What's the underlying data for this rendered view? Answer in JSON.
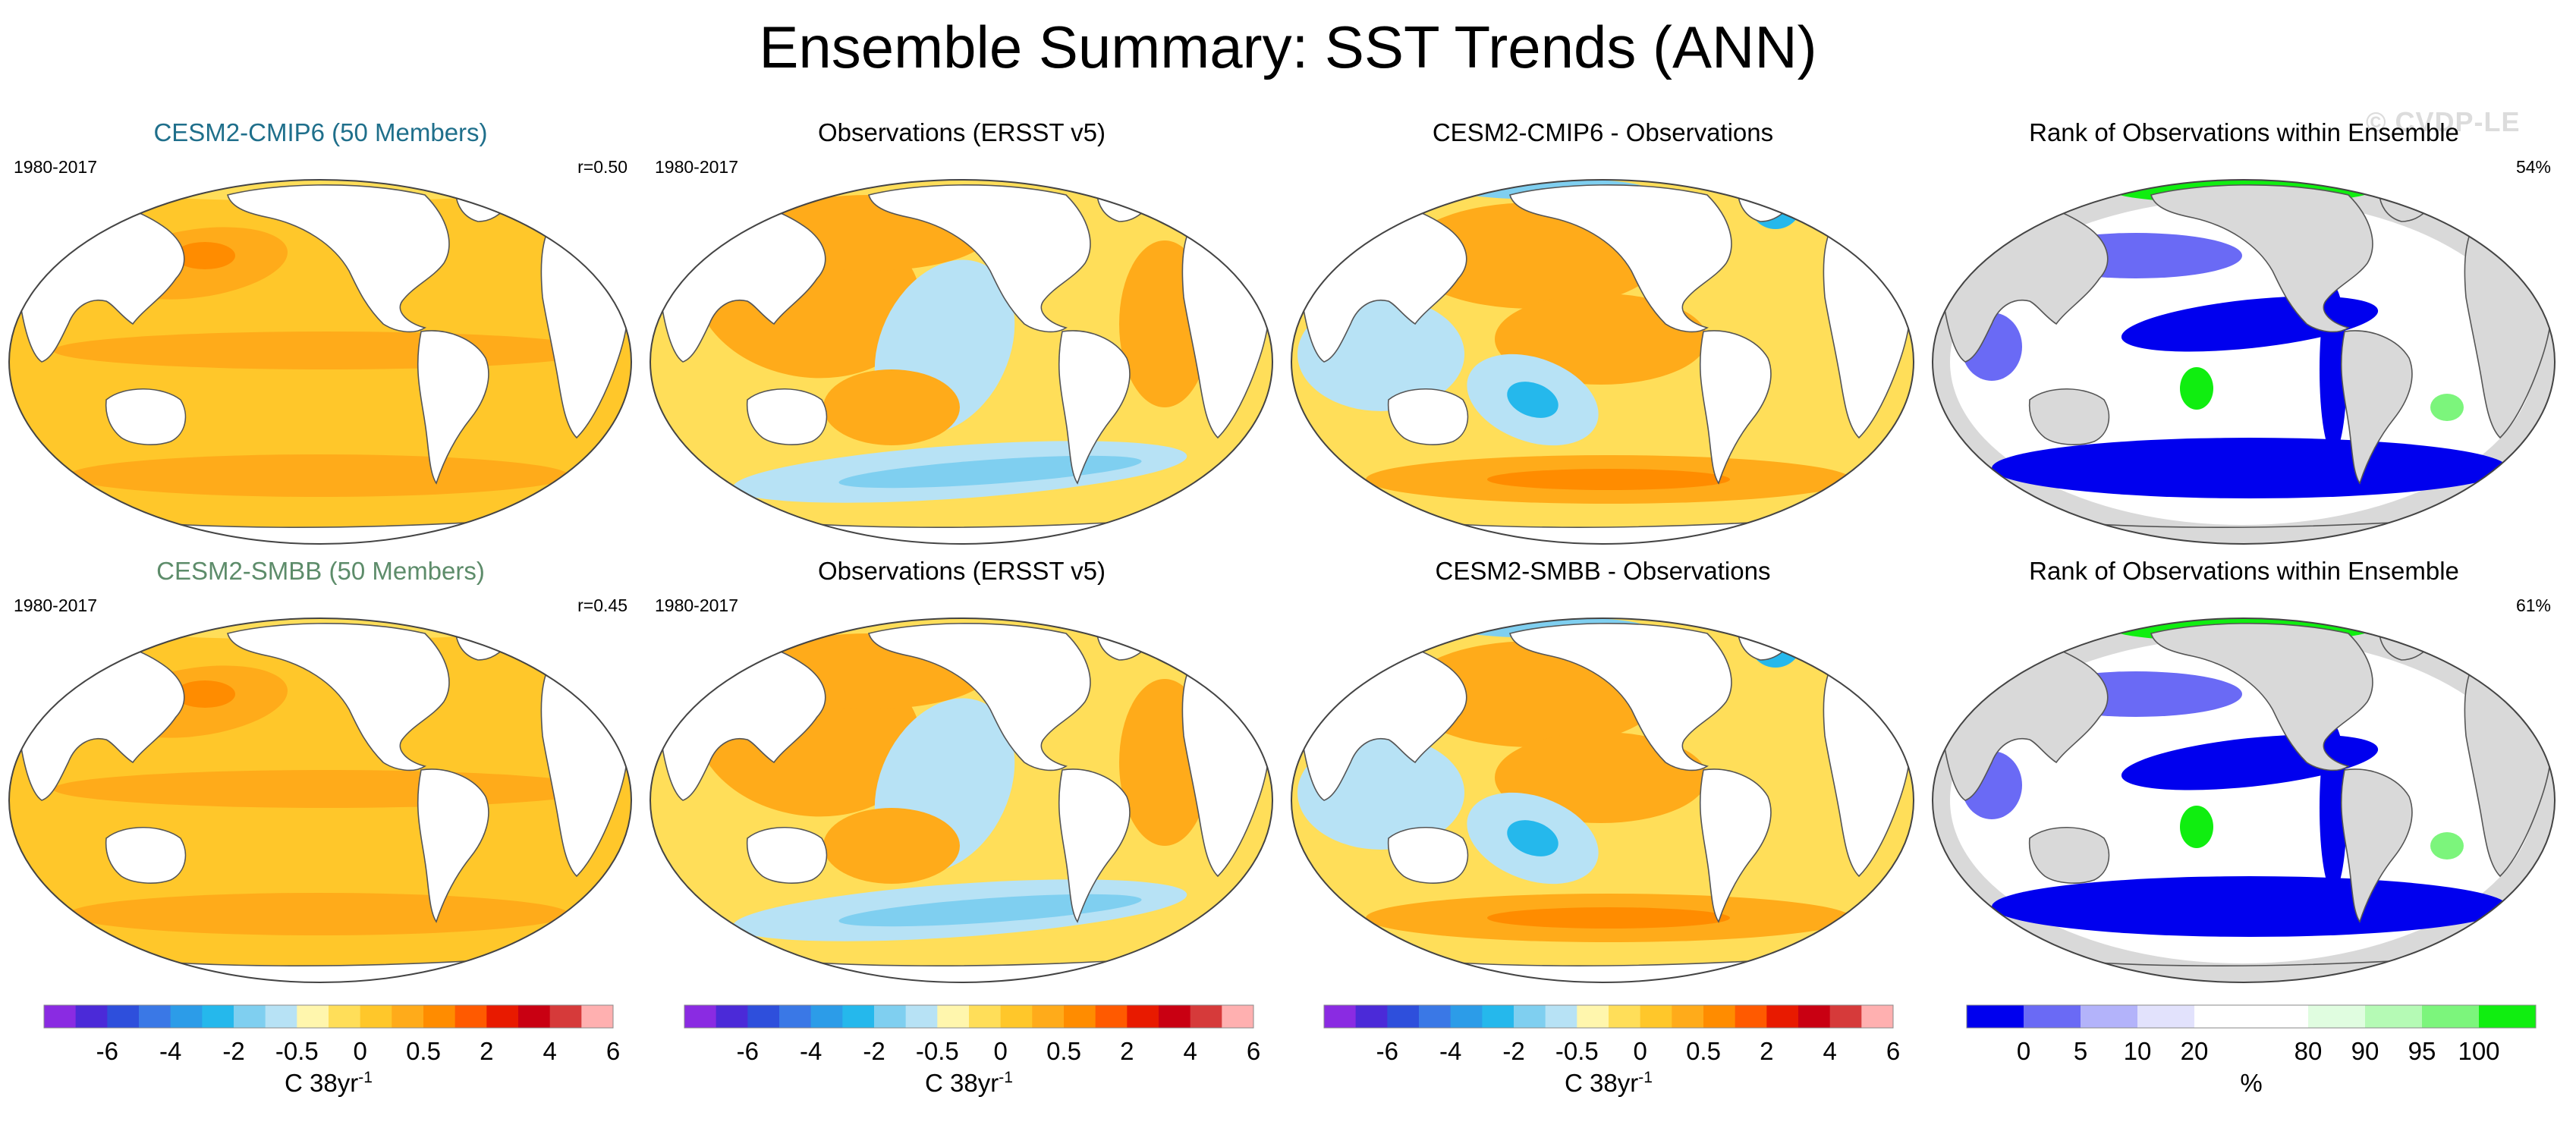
{
  "title": "Ensemble Summary: SST Trends (ANN)",
  "watermark": "© CVDP-LE",
  "panels": [
    {
      "title": "CESM2-CMIP6 (50 Members)",
      "title_color": "#1f6f8b",
      "left": "1980-2017",
      "right": "r=0.50",
      "kind": "model"
    },
    {
      "title": "Observations (ERSST v5)",
      "title_color": "#000000",
      "left": "1980-2017",
      "right": "",
      "kind": "obs"
    },
    {
      "title": "CESM2-CMIP6 - Observations",
      "title_color": "#000000",
      "left": "",
      "right": "",
      "kind": "diff"
    },
    {
      "title": "Rank of Observations within Ensemble",
      "title_color": "#000000",
      "left": "",
      "right": "54%",
      "kind": "rank"
    },
    {
      "title": "CESM2-SMBB (50 Members)",
      "title_color": "#5d8c6a",
      "left": "1980-2017",
      "right": "r=0.45",
      "kind": "model"
    },
    {
      "title": "Observations (ERSST v5)",
      "title_color": "#000000",
      "left": "1980-2017",
      "right": "",
      "kind": "obs"
    },
    {
      "title": "CESM2-SMBB - Observations",
      "title_color": "#000000",
      "left": "",
      "right": "",
      "kind": "diff"
    },
    {
      "title": "Rank of Observations within Ensemble",
      "title_color": "#000000",
      "left": "",
      "right": "61%",
      "kind": "rank"
    }
  ],
  "colorbars": [
    {
      "colors": [
        "#8a2be2",
        "#4b2ad8",
        "#2e4fdc",
        "#3a78e6",
        "#2c9ce8",
        "#25b8ec",
        "#7fcff0",
        "#b7e2f5",
        "#fff6ad",
        "#ffde59",
        "#ffc72a",
        "#ffab1a",
        "#ff8c00",
        "#ff5a00",
        "#e81a00",
        "#c90012",
        "#d63a3a",
        "#ffb0b0"
      ],
      "ticks": [
        "-6",
        "-4",
        "-2",
        "-0.5",
        "0",
        "0.5",
        "2",
        "4",
        "6"
      ],
      "unit": "C 38yr",
      "unit_sup": "-1"
    },
    {
      "colors": [
        "#8a2be2",
        "#4b2ad8",
        "#2e4fdc",
        "#3a78e6",
        "#2c9ce8",
        "#25b8ec",
        "#7fcff0",
        "#b7e2f5",
        "#fff6ad",
        "#ffde59",
        "#ffc72a",
        "#ffab1a",
        "#ff8c00",
        "#ff5a00",
        "#e81a00",
        "#c90012",
        "#d63a3a",
        "#ffb0b0"
      ],
      "ticks": [
        "-6",
        "-4",
        "-2",
        "-0.5",
        "0",
        "0.5",
        "2",
        "4",
        "6"
      ],
      "unit": "C 38yr",
      "unit_sup": "-1"
    },
    {
      "colors": [
        "#8a2be2",
        "#4b2ad8",
        "#2e4fdc",
        "#3a78e6",
        "#2c9ce8",
        "#25b8ec",
        "#7fcff0",
        "#b7e2f5",
        "#fff6ad",
        "#ffde59",
        "#ffc72a",
        "#ffab1a",
        "#ff8c00",
        "#ff5a00",
        "#e81a00",
        "#c90012",
        "#d63a3a",
        "#ffb0b0"
      ],
      "ticks": [
        "-6",
        "-4",
        "-2",
        "-0.5",
        "0",
        "0.5",
        "2",
        "4",
        "6"
      ],
      "unit": "C 38yr",
      "unit_sup": "-1"
    },
    {
      "colors": [
        "#0000ee",
        "#6a6af5",
        "#b3b3fa",
        "#e2e2fc",
        "#ffffff",
        "#ffffff",
        "#e0fde0",
        "#b5fab5",
        "#7cf57c",
        "#10ee10"
      ],
      "ticks": [
        "0",
        "5",
        "10",
        "20",
        "80",
        "90",
        "95",
        "100"
      ],
      "unit": "%",
      "unit_sup": ""
    }
  ],
  "chart_data": {
    "type": "heatmap",
    "title": "Ensemble Summary: SST Trends (ANN)",
    "period": "1980-2017",
    "variable": "SST trend",
    "units": "C 38yr-1",
    "sst_levels": [
      -6,
      -4,
      -2,
      -0.5,
      0,
      0.5,
      2,
      4,
      6
    ],
    "rank_levels": [
      0,
      5,
      10,
      20,
      80,
      90,
      95,
      100
    ],
    "rows": [
      {
        "model": "CESM2-CMIP6 (50 Members)",
        "pattern_correlation": 0.5,
        "rank_area_pct": 54
      },
      {
        "model": "CESM2-SMBB (50 Members)",
        "pattern_correlation": 0.45,
        "rank_area_pct": 61
      }
    ]
  }
}
